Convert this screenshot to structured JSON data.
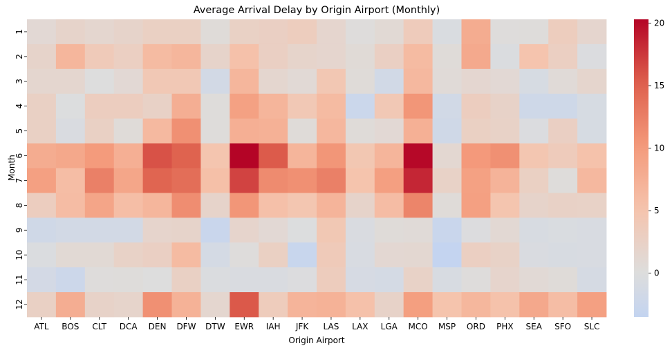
{
  "chart_data": {
    "type": "heatmap",
    "title": "Average Arrival Delay by Origin Airport (Monthly)",
    "xlabel": "Origin Airport",
    "ylabel": "Month",
    "x": [
      "ATL",
      "BOS",
      "CLT",
      "DCA",
      "DEN",
      "DFW",
      "DTW",
      "EWR",
      "IAH",
      "JFK",
      "LAS",
      "LAX",
      "LGA",
      "MCO",
      "MSP",
      "ORD",
      "PHX",
      "SEA",
      "SFO",
      "SLC"
    ],
    "y": [
      "1",
      "2",
      "3",
      "4",
      "5",
      "6",
      "7",
      "8",
      "9",
      "10",
      "11",
      "12"
    ],
    "values": [
      [
        1.0,
        2.0,
        1.5,
        2.0,
        2.7,
        2.7,
        0.5,
        2.5,
        2.8,
        3.3,
        1.6,
        0.2,
        0.9,
        3.6,
        -0.5,
        8.0,
        0.2,
        0.3,
        3.3,
        1.6
      ],
      [
        2.0,
        6.8,
        3.8,
        2.9,
        6.2,
        6.8,
        2.0,
        5.4,
        2.8,
        1.9,
        1.6,
        0.7,
        2.8,
        6.2,
        0.5,
        8.3,
        -0.4,
        5.0,
        2.9,
        -0.3
      ],
      [
        1.5,
        1.5,
        0.0,
        1.0,
        4.2,
        4.2,
        -1.5,
        6.8,
        1.5,
        0.8,
        4.4,
        0.5,
        -1.7,
        6.5,
        0.6,
        1.4,
        1.0,
        -0.9,
        0.6,
        1.7
      ],
      [
        2.6,
        -0.1,
        3.2,
        3.2,
        2.4,
        7.7,
        0.3,
        9.3,
        6.9,
        4.2,
        6.2,
        -2.5,
        4.2,
        10.5,
        -1.6,
        3.2,
        2.2,
        -2.0,
        -2.0,
        -0.9
      ],
      [
        2.6,
        -0.6,
        2.6,
        0.5,
        6.4,
        11.0,
        0.3,
        7.6,
        7.4,
        0.5,
        6.6,
        0.5,
        1.0,
        7.5,
        -1.9,
        2.7,
        2.3,
        -0.3,
        2.8,
        -0.9
      ],
      [
        8.0,
        8.5,
        10.0,
        7.6,
        16.0,
        15.0,
        4.9,
        20.3,
        15.5,
        6.9,
        10.5,
        4.5,
        6.9,
        20.1,
        1.3,
        10.2,
        11.0,
        4.6,
        3.6,
        5.3
      ],
      [
        9.4,
        5.9,
        12.4,
        8.7,
        14.8,
        14.0,
        5.6,
        16.8,
        11.5,
        11.0,
        12.4,
        5.1,
        9.5,
        18.4,
        2.3,
        9.3,
        7.1,
        2.7,
        0.3,
        6.5
      ],
      [
        3.2,
        6.0,
        8.8,
        5.8,
        6.8,
        11.3,
        2.0,
        10.5,
        5.5,
        4.7,
        7.0,
        2.0,
        6.0,
        12.0,
        0.5,
        9.4,
        4.9,
        2.0,
        2.4,
        2.3
      ],
      [
        -1.9,
        -1.5,
        -1.5,
        -1.5,
        1.8,
        2.0,
        -2.7,
        1.8,
        1.0,
        -0.1,
        4.3,
        -0.6,
        0.5,
        0.6,
        -2.7,
        -0.2,
        1.1,
        -0.8,
        -0.5,
        -0.7
      ],
      [
        -0.4,
        0.9,
        0.9,
        2.3,
        2.8,
        6.2,
        -1.3,
        0.2,
        2.7,
        -2.9,
        3.8,
        -0.7,
        1.2,
        1.3,
        -3.4,
        2.9,
        2.3,
        -0.6,
        -0.8,
        -0.7
      ],
      [
        -1.4,
        -2.3,
        0.2,
        0.3,
        0.0,
        2.6,
        -0.4,
        -0.6,
        -0.6,
        -0.2,
        3.4,
        -1.0,
        -1.3,
        2.3,
        -0.8,
        0.2,
        1.8,
        0.8,
        0.5,
        -1.1
      ],
      [
        2.6,
        7.8,
        2.2,
        1.9,
        11.0,
        7.3,
        1.5,
        15.6,
        3.5,
        7.0,
        7.3,
        5.4,
        2.2,
        9.6,
        5.1,
        6.7,
        5.3,
        8.4,
        5.9,
        9.4
      ]
    ],
    "colorbar": {
      "colormap": "coolwarm",
      "range": [
        -3.5,
        20.3
      ],
      "center": 0,
      "ticks": [
        0,
        5,
        10,
        15,
        20
      ]
    }
  }
}
